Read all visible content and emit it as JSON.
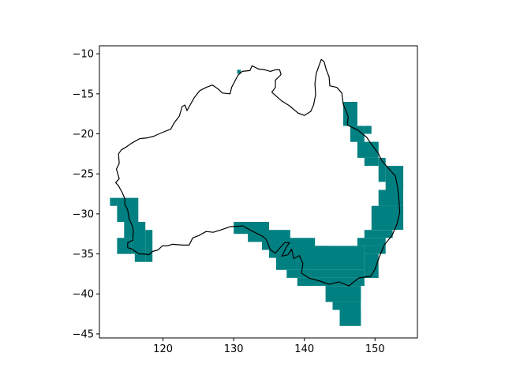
{
  "chart_data": {
    "type": "map",
    "xlim": [
      111,
      156
    ],
    "ylim": [
      -45.5,
      -9
    ],
    "x_ticks": [
      120,
      130,
      140,
      150
    ],
    "y_ticks": [
      -10,
      -15,
      -20,
      -25,
      -30,
      -35,
      -40,
      -45
    ],
    "x_tick_labels": [
      "120",
      "130",
      "140",
      "150"
    ],
    "y_tick_labels": [
      "−10",
      "−15",
      "−20",
      "−25",
      "−30",
      "−35",
      "−40",
      "−45"
    ],
    "fill_color": "#008080",
    "outline_color": "#000000",
    "grid": false,
    "coastline_lonlat": [
      [
        114.1,
        -22.0
      ],
      [
        114.7,
        -21.7
      ],
      [
        115.5,
        -21.2
      ],
      [
        116.7,
        -20.6
      ],
      [
        117.8,
        -20.5
      ],
      [
        118.7,
        -20.3
      ],
      [
        119.7,
        -19.9
      ],
      [
        121.1,
        -19.4
      ],
      [
        121.6,
        -18.6
      ],
      [
        122.3,
        -17.8
      ],
      [
        122.7,
        -16.6
      ],
      [
        123.1,
        -16.4
      ],
      [
        123.4,
        -17.1
      ],
      [
        123.9,
        -16.3
      ],
      [
        124.4,
        -15.5
      ],
      [
        125.2,
        -14.6
      ],
      [
        126.1,
        -14.2
      ],
      [
        127.0,
        -13.9
      ],
      [
        127.8,
        -14.4
      ],
      [
        128.4,
        -14.9
      ],
      [
        129.5,
        -15.0
      ],
      [
        129.7,
        -14.2
      ],
      [
        130.6,
        -12.7
      ],
      [
        131.2,
        -12.2
      ],
      [
        132.3,
        -12.1
      ],
      [
        132.6,
        -11.5
      ],
      [
        133.5,
        -11.9
      ],
      [
        134.4,
        -12.0
      ],
      [
        135.2,
        -12.2
      ],
      [
        135.9,
        -12.0
      ],
      [
        136.5,
        -12.0
      ],
      [
        136.7,
        -12.6
      ],
      [
        135.9,
        -13.3
      ],
      [
        135.9,
        -14.2
      ],
      [
        135.4,
        -14.8
      ],
      [
        136.8,
        -15.9
      ],
      [
        137.9,
        -16.5
      ],
      [
        139.1,
        -17.4
      ],
      [
        140.0,
        -17.7
      ],
      [
        140.9,
        -17.2
      ],
      [
        141.3,
        -16.4
      ],
      [
        141.6,
        -15.1
      ],
      [
        141.5,
        -13.7
      ],
      [
        141.7,
        -12.4
      ],
      [
        142.4,
        -10.7
      ],
      [
        142.8,
        -11.0
      ],
      [
        143.1,
        -12.0
      ],
      [
        143.5,
        -12.9
      ],
      [
        143.6,
        -14.0
      ],
      [
        144.6,
        -14.2
      ],
      [
        145.3,
        -14.9
      ],
      [
        145.5,
        -16.3
      ],
      [
        146.2,
        -17.8
      ],
      [
        146.1,
        -18.9
      ],
      [
        147.5,
        -19.5
      ],
      [
        148.8,
        -20.4
      ],
      [
        149.5,
        -21.3
      ],
      [
        150.5,
        -22.5
      ],
      [
        151.0,
        -23.4
      ],
      [
        152.9,
        -25.3
      ],
      [
        153.2,
        -26.7
      ],
      [
        153.4,
        -28.4
      ],
      [
        153.5,
        -29.8
      ],
      [
        153.1,
        -31.3
      ],
      [
        152.4,
        -32.7
      ],
      [
        151.3,
        -33.9
      ],
      [
        150.6,
        -35.4
      ],
      [
        150.0,
        -36.9
      ],
      [
        149.4,
        -37.8
      ],
      [
        147.7,
        -38.0
      ],
      [
        146.3,
        -39.0
      ],
      [
        144.9,
        -38.5
      ],
      [
        143.5,
        -38.8
      ],
      [
        142.2,
        -38.4
      ],
      [
        140.6,
        -38.0
      ],
      [
        139.6,
        -37.4
      ],
      [
        139.8,
        -36.2
      ],
      [
        139.3,
        -35.2
      ],
      [
        138.5,
        -35.6
      ],
      [
        138.2,
        -34.4
      ],
      [
        137.7,
        -35.1
      ],
      [
        136.8,
        -35.3
      ],
      [
        137.5,
        -34.1
      ],
      [
        137.9,
        -33.6
      ],
      [
        137.2,
        -33.6
      ],
      [
        135.9,
        -34.9
      ],
      [
        135.2,
        -34.5
      ],
      [
        134.6,
        -33.2
      ],
      [
        134.1,
        -32.8
      ],
      [
        132.3,
        -32.0
      ],
      [
        131.3,
        -31.5
      ],
      [
        129.5,
        -31.6
      ],
      [
        128.2,
        -32.0
      ],
      [
        127.1,
        -32.3
      ],
      [
        126.1,
        -32.2
      ],
      [
        125.1,
        -32.7
      ],
      [
        124.2,
        -33.0
      ],
      [
        123.7,
        -33.9
      ],
      [
        122.8,
        -33.9
      ],
      [
        121.3,
        -33.8
      ],
      [
        120.6,
        -34.0
      ],
      [
        119.9,
        -34.0
      ],
      [
        119.3,
        -34.5
      ],
      [
        118.5,
        -34.7
      ],
      [
        118.0,
        -35.1
      ],
      [
        117.3,
        -35.0
      ],
      [
        116.6,
        -35.0
      ],
      [
        115.6,
        -34.4
      ],
      [
        115.0,
        -34.2
      ],
      [
        115.0,
        -33.6
      ],
      [
        115.7,
        -33.3
      ],
      [
        115.8,
        -32.2
      ],
      [
        115.7,
        -31.6
      ],
      [
        115.2,
        -30.6
      ],
      [
        115.0,
        -29.5
      ],
      [
        114.6,
        -28.8
      ],
      [
        114.6,
        -28.1
      ],
      [
        114.2,
        -27.3
      ],
      [
        113.7,
        -26.5
      ],
      [
        113.3,
        -26.1
      ],
      [
        113.8,
        -25.6
      ],
      [
        113.4,
        -24.4
      ],
      [
        113.8,
        -23.7
      ],
      [
        113.7,
        -22.5
      ],
      [
        114.1,
        -22.0
      ]
    ],
    "shaded_cells": [
      {
        "lon": [
          130.5,
          131.0
        ],
        "lat": [
          -12.5,
          -12.0
        ]
      },
      {
        "lon": [
          112.5,
          113.5
        ],
        "lat": [
          -29.0,
          -28.0
        ]
      },
      {
        "lon": [
          113.5,
          116.5
        ],
        "lat": [
          -31.0,
          -28.0
        ]
      },
      {
        "lon": [
          114.5,
          116.5
        ],
        "lat": [
          -33.0,
          -31.0
        ]
      },
      {
        "lon": [
          115.5,
          117.5
        ],
        "lat": [
          -35.0,
          -31.0
        ]
      },
      {
        "lon": [
          117.5,
          118.5
        ],
        "lat": [
          -36.0,
          -32.0
        ]
      },
      {
        "lon": [
          113.5,
          115.5
        ],
        "lat": [
          -35.0,
          -33.0
        ]
      },
      {
        "lon": [
          116.0,
          117.5
        ],
        "lat": [
          -36.0,
          -35.0
        ]
      },
      {
        "lon": [
          145.5,
          147.5
        ],
        "lat": [
          -19.0,
          -16.0
        ]
      },
      {
        "lon": [
          146.5,
          148.5
        ],
        "lat": [
          -21.0,
          -19.0
        ]
      },
      {
        "lon": [
          148.5,
          149.5
        ],
        "lat": [
          -20.0,
          -19.0
        ]
      },
      {
        "lon": [
          147.5,
          150.5
        ],
        "lat": [
          -23.0,
          -21.0
        ]
      },
      {
        "lon": [
          148.5,
          150.5
        ],
        "lat": [
          -24.0,
          -23.0
        ]
      },
      {
        "lon": [
          150.5,
          151.5
        ],
        "lat": [
          -26.0,
          -23.0
        ]
      },
      {
        "lon": [
          151.5,
          154.0
        ],
        "lat": [
          -27.0,
          -24.0
        ]
      },
      {
        "lon": [
          150.5,
          154.0
        ],
        "lat": [
          -29.0,
          -27.0
        ]
      },
      {
        "lon": [
          149.5,
          154.0
        ],
        "lat": [
          -32.0,
          -29.0
        ]
      },
      {
        "lon": [
          148.5,
          152.5
        ],
        "lat": [
          -33.0,
          -32.0
        ]
      },
      {
        "lon": [
          147.5,
          151.5
        ],
        "lat": [
          -34.0,
          -33.0
        ]
      },
      {
        "lon": [
          148.5,
          151.5
        ],
        "lat": [
          -35.0,
          -34.0
        ]
      },
      {
        "lon": [
          148.5,
          150.5
        ],
        "lat": [
          -38.0,
          -35.0
        ]
      },
      {
        "lon": [
          130.0,
          135.0
        ],
        "lat": [
          -32.5,
          -31.0
        ]
      },
      {
        "lon": [
          132.0,
          138.0
        ],
        "lat": [
          -33.5,
          -32.0
        ]
      },
      {
        "lon": [
          134.0,
          141.5
        ],
        "lat": [
          -34.5,
          -33.0
        ]
      },
      {
        "lon": [
          135.0,
          143.5
        ],
        "lat": [
          -35.5,
          -34.0
        ]
      },
      {
        "lon": [
          136.0,
          148.5
        ],
        "lat": [
          -37.0,
          -34.0
        ]
      },
      {
        "lon": [
          137.5,
          148.5
        ],
        "lat": [
          -38.0,
          -37.0
        ]
      },
      {
        "lon": [
          139.0,
          148.5
        ],
        "lat": [
          -39.0,
          -38.0
        ]
      },
      {
        "lon": [
          143.0,
          148.0
        ],
        "lat": [
          -41.0,
          -39.0
        ]
      },
      {
        "lon": [
          144.0,
          148.0
        ],
        "lat": [
          -42.0,
          -41.0
        ]
      },
      {
        "lon": [
          145.0,
          148.0
        ],
        "lat": [
          -44.0,
          -42.0
        ]
      }
    ]
  }
}
